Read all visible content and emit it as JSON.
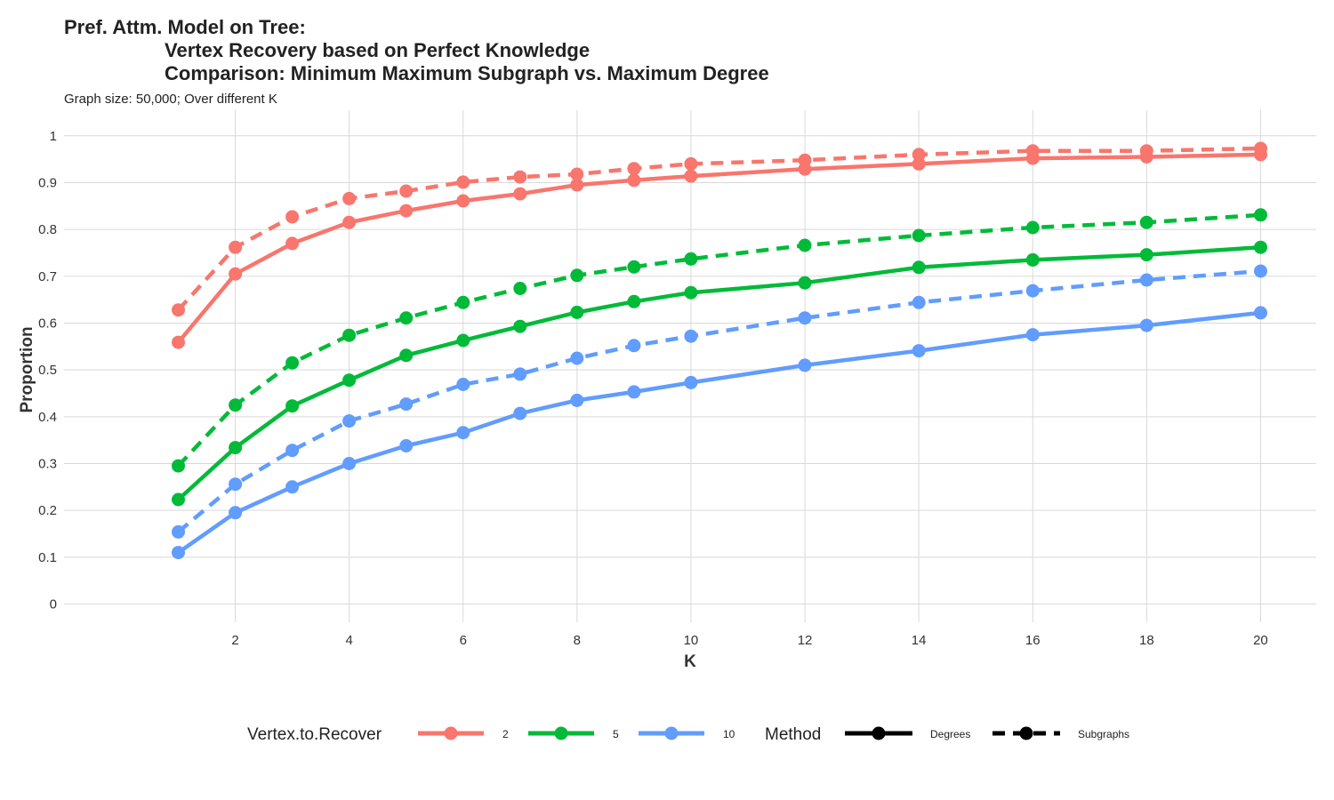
{
  "chart_data": {
    "type": "line",
    "title_lines": [
      "Pref. Attm. Model on Tree:",
      "Vertex Recovery based on Perfect Knowledge",
      "Comparison: Minimum Maximum Subgraph vs. Maximum Degree"
    ],
    "subtitle": "Graph size: 50,000; Over different K",
    "xlabel": "K",
    "ylabel": "Proportion",
    "xlim": [
      1,
      20
    ],
    "ylim": [
      0,
      1
    ],
    "x_ticks": [
      2,
      4,
      6,
      8,
      10,
      12,
      14,
      16,
      18,
      20
    ],
    "y_ticks": [
      0,
      0.1,
      0.2,
      0.3,
      0.4,
      0.5,
      0.6,
      0.7,
      0.8,
      0.9,
      1
    ],
    "y_tick_labels": [
      "0",
      "0.1",
      "0.2",
      "0.3",
      "0.4",
      "0.5",
      "0.6",
      "0.7",
      "0.8",
      "0.9",
      "1"
    ],
    "grid": true,
    "legend_position": "bottom",
    "x": [
      1,
      2,
      3,
      4,
      5,
      6,
      7,
      8,
      9,
      10,
      12,
      14,
      16,
      18,
      20
    ],
    "legend": {
      "color_title": "Vertex.to.Recover",
      "colors": [
        {
          "label": "2",
          "color": "#F8766D"
        },
        {
          "label": "5",
          "color": "#00BA38"
        },
        {
          "label": "10",
          "color": "#619CFF"
        }
      ],
      "linetype_title": "Method",
      "linetypes": [
        {
          "label": "Degrees",
          "dash": "solid"
        },
        {
          "label": "Subgraphs",
          "dash": "dashed"
        }
      ]
    },
    "series": [
      {
        "vertex": "2",
        "method": "Degrees",
        "color": "#F8766D",
        "dash": "solid",
        "values": [
          0.559,
          0.705,
          0.77,
          0.815,
          0.84,
          0.861,
          0.876,
          0.895,
          0.905,
          0.914,
          0.929,
          0.94,
          0.952,
          0.955,
          0.96
        ]
      },
      {
        "vertex": "2",
        "method": "Subgraphs",
        "color": "#F8766D",
        "dash": "dashed",
        "values": [
          0.628,
          0.762,
          0.827,
          0.866,
          0.882,
          0.901,
          0.912,
          0.918,
          0.93,
          0.94,
          0.948,
          0.96,
          0.968,
          0.968,
          0.973
        ]
      },
      {
        "vertex": "5",
        "method": "Degrees",
        "color": "#00BA38",
        "dash": "solid",
        "values": [
          0.223,
          0.334,
          0.423,
          0.478,
          0.531,
          0.563,
          0.593,
          0.623,
          0.646,
          0.665,
          0.686,
          0.719,
          0.735,
          0.746,
          0.762
        ]
      },
      {
        "vertex": "5",
        "method": "Subgraphs",
        "color": "#00BA38",
        "dash": "dashed",
        "values": [
          0.295,
          0.425,
          0.515,
          0.574,
          0.611,
          0.644,
          0.674,
          0.702,
          0.72,
          0.737,
          0.766,
          0.787,
          0.804,
          0.815,
          0.831
        ]
      },
      {
        "vertex": "10",
        "method": "Degrees",
        "color": "#619CFF",
        "dash": "solid",
        "values": [
          0.11,
          0.195,
          0.25,
          0.3,
          0.338,
          0.366,
          0.407,
          0.435,
          0.453,
          0.473,
          0.51,
          0.541,
          0.575,
          0.595,
          0.622
        ]
      },
      {
        "vertex": "10",
        "method": "Subgraphs",
        "color": "#619CFF",
        "dash": "dashed",
        "values": [
          0.154,
          0.256,
          0.328,
          0.391,
          0.427,
          0.469,
          0.491,
          0.525,
          0.552,
          0.572,
          0.611,
          0.644,
          0.669,
          0.692,
          0.711
        ]
      }
    ]
  }
}
